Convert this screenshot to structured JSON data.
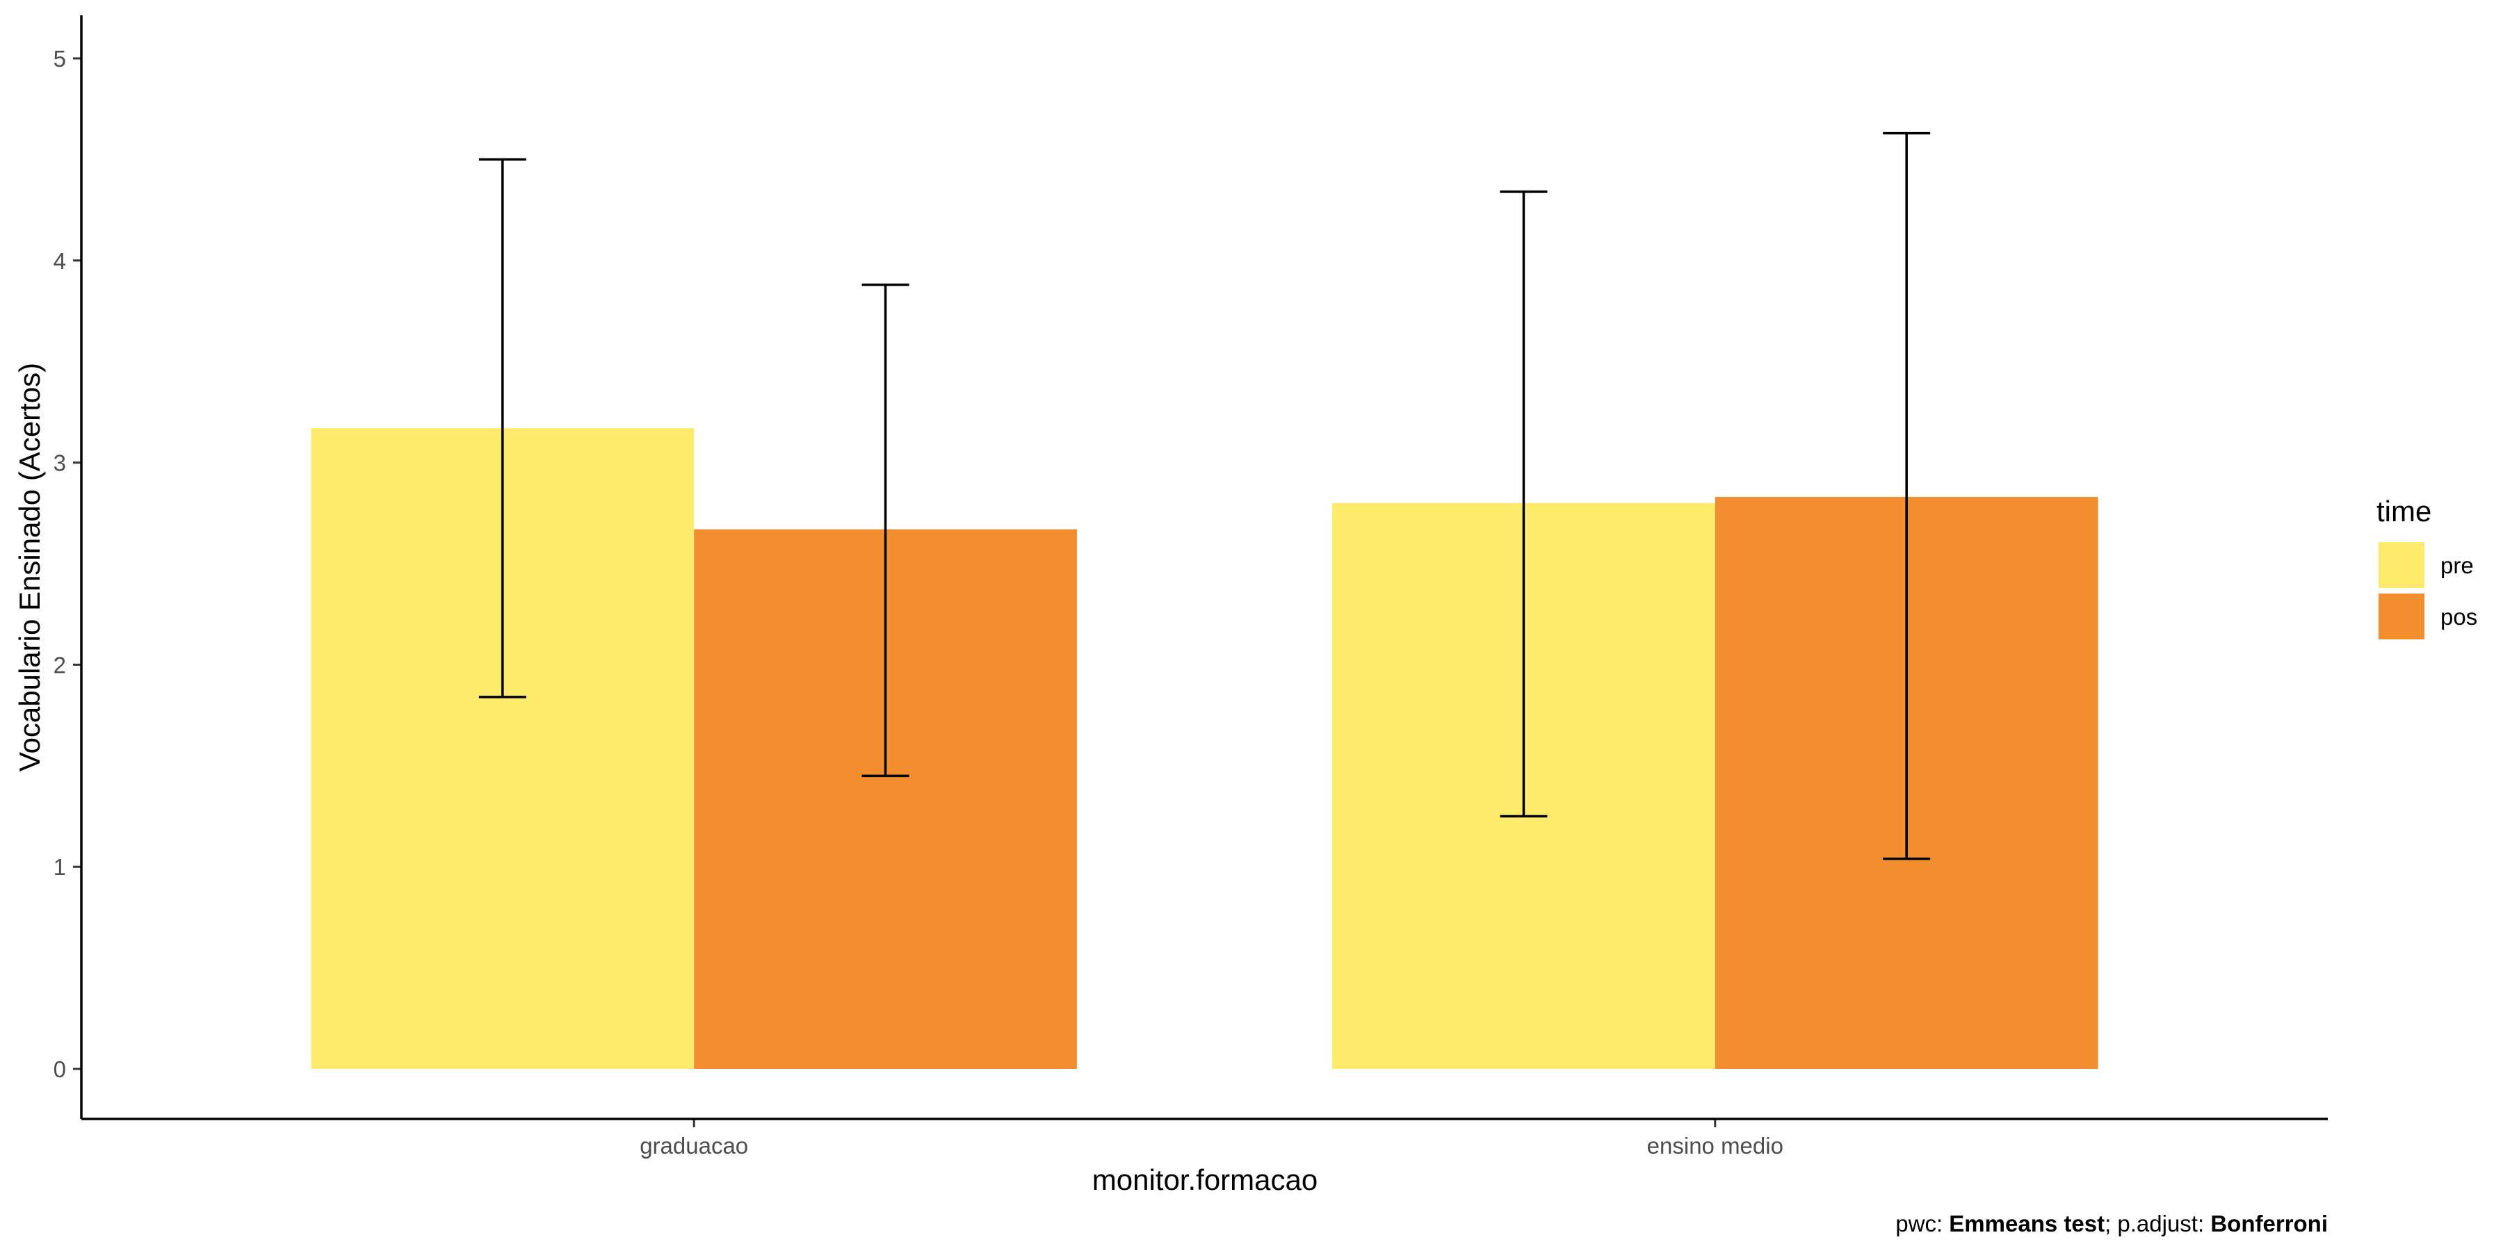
{
  "chart_data": {
    "type": "bar",
    "categories": [
      "graduacao",
      "ensino medio"
    ],
    "series": [
      {
        "name": "pre",
        "color": "#FFEB6B",
        "values": [
          3.17,
          2.8
        ],
        "error_low": [
          1.84,
          1.25
        ],
        "error_high": [
          4.5,
          4.34
        ]
      },
      {
        "name": "pos",
        "color": "#F28E2E",
        "values": [
          2.67,
          2.83
        ],
        "error_low": [
          1.45,
          1.04
        ],
        "error_high": [
          3.88,
          4.63
        ]
      }
    ],
    "xlabel": "monitor.formacao",
    "ylabel": "Vocabulario Ensinado (Acertos)",
    "ylim": [
      -0.25,
      5.2
    ],
    "yticks": [
      0,
      1,
      2,
      3,
      4,
      5
    ],
    "legend": {
      "title": "time",
      "position": "right"
    },
    "caption": {
      "pwc_label": "pwc: ",
      "pwc_value": "Emmeans test",
      "sep": "; p.adjust: ",
      "adjust_value": "Bonferroni"
    },
    "grid": false
  }
}
